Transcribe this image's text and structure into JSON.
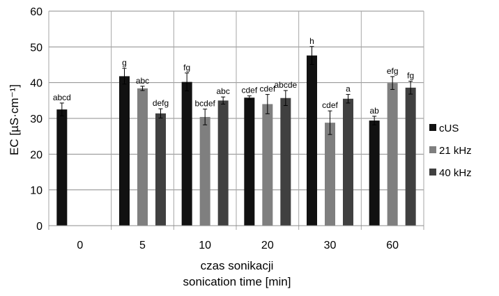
{
  "chart_data": {
    "type": "bar",
    "categories": [
      "0",
      "5",
      "10",
      "20",
      "30",
      "60"
    ],
    "series": [
      {
        "name": "cUS",
        "values": [
          32.5,
          41.8,
          40.2,
          35.8,
          47.6,
          29.4
        ],
        "errors": [
          1.8,
          2.2,
          2.5,
          0.5,
          2.5,
          1.2
        ],
        "labels": [
          "abcd",
          "g",
          "fg",
          "cdef",
          "h",
          "ab"
        ]
      },
      {
        "name": "21 kHz",
        "values": [
          null,
          38.4,
          30.4,
          34.0,
          28.8,
          39.9
        ],
        "errors": [
          null,
          0.6,
          2.2,
          2.7,
          3.3,
          1.8
        ],
        "labels": [
          "",
          "abc",
          "bcdef",
          "cdef",
          "cdef",
          "efg"
        ]
      },
      {
        "name": "40 kHz",
        "values": [
          null,
          31.4,
          35.0,
          35.7,
          35.5,
          38.6
        ],
        "errors": [
          null,
          1.3,
          1.0,
          2.1,
          1.2,
          1.8
        ],
        "labels": [
          "",
          "defg",
          "abc",
          "abcde",
          "a",
          "fg"
        ]
      }
    ],
    "colors": [
      "#111111",
      "#7f7f7f",
      "#404040"
    ],
    "ylabel": "EC [µS·cm⁻¹]",
    "xlabel_line1": "czas sonikacji",
    "xlabel_line2": "sonication time [min]",
    "ylim": [
      0,
      60
    ],
    "yticks": [
      0,
      10,
      20,
      30,
      40,
      50,
      60
    ],
    "grid": "horizontal major gridlines",
    "legend": "right"
  }
}
